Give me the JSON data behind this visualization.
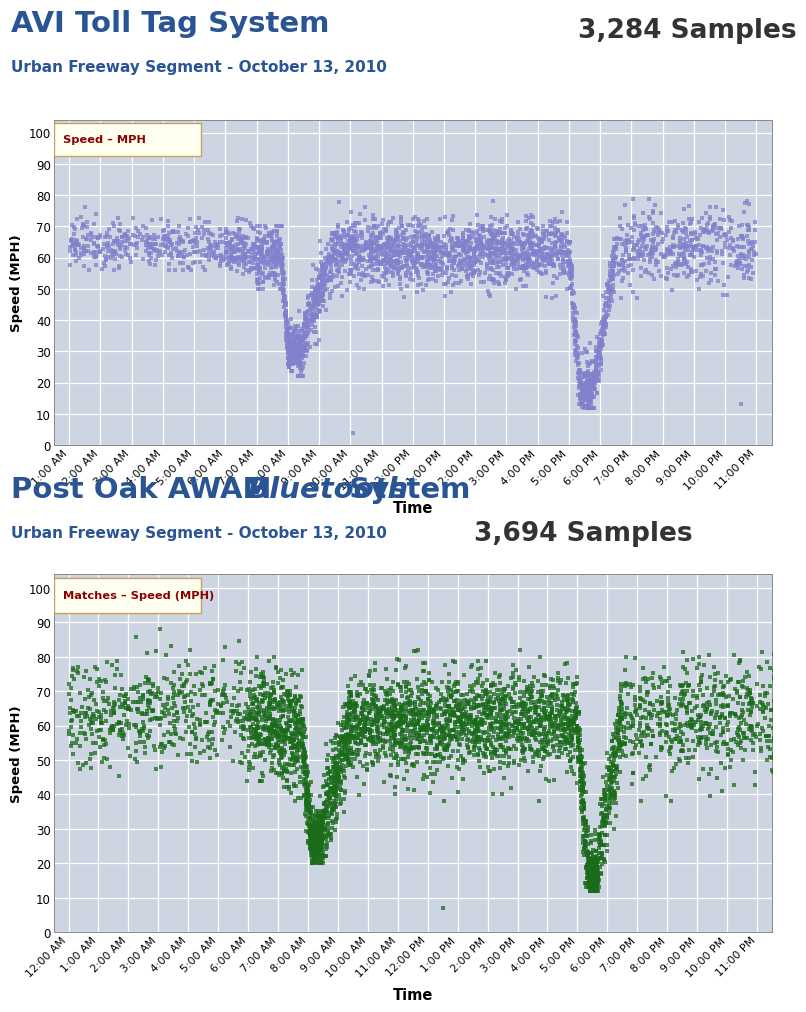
{
  "title1": "AVI Toll Tag System",
  "subtitle1": "Urban Freeway Segment - October 13, 2010",
  "samples1": "3,284 Samples",
  "legend1": "Speed – MPH",
  "color1": "#8080cc",
  "title2_part1": "Post Oak AWAM ",
  "title2_italic": "Bluetooth",
  "title2_part2": " System",
  "subtitle2": "Urban Freeway Segment - October 13, 2010",
  "samples2": "3,694 Samples",
  "legend2": "Matches – Speed (MPH)",
  "color2": "#1a6b1a",
  "title_color": "#2a5594",
  "subtitle_color": "#2a5594",
  "samples_color": "#333333",
  "plot_bg": "#cdd4e2",
  "grid_color": "#ffffff",
  "x_ticks1": [
    "1:00 AM",
    "2:00 AM",
    "3:00 AM",
    "4:00 AM",
    "5:00 AM",
    "6:00 AM",
    "7:00 AM",
    "8:00 AM",
    "9:00 AM",
    "10:00 AM",
    "11:00 AM",
    "12:00 PM",
    "1:00 PM",
    "2:00 PM",
    "3:00 PM",
    "4:00 PM",
    "5:00 PM",
    "6:00 PM",
    "7:00 PM",
    "8:00 PM",
    "9:00 PM",
    "10:00 PM",
    "11:00 PM"
  ],
  "x_ticks2": [
    "12:00 AM",
    "1:00 AM",
    "2:00 AM",
    "3:00 AM",
    "4:00 AM",
    "5:00 AM",
    "6:00 AM",
    "7:00 AM",
    "8:00 AM",
    "9:00 AM",
    "10:00 AM",
    "11:00 AM",
    "12:00 PM",
    "1:00 PM",
    "2:00 PM",
    "3:00 PM",
    "4:00 PM",
    "5:00 PM",
    "6:00 PM",
    "7:00 PM",
    "8:00 PM",
    "9:00 PM",
    "10:00 PM",
    "11:00 PM"
  ],
  "yticks": [
    0,
    10,
    20,
    30,
    40,
    50,
    60,
    70,
    80,
    90,
    100
  ],
  "ylabel": "Speed (MPH)",
  "xlabel": "Time",
  "legend_bg": "#fffff0",
  "legend_edge": "#c8a060",
  "legend_text_color": "#8b0000"
}
